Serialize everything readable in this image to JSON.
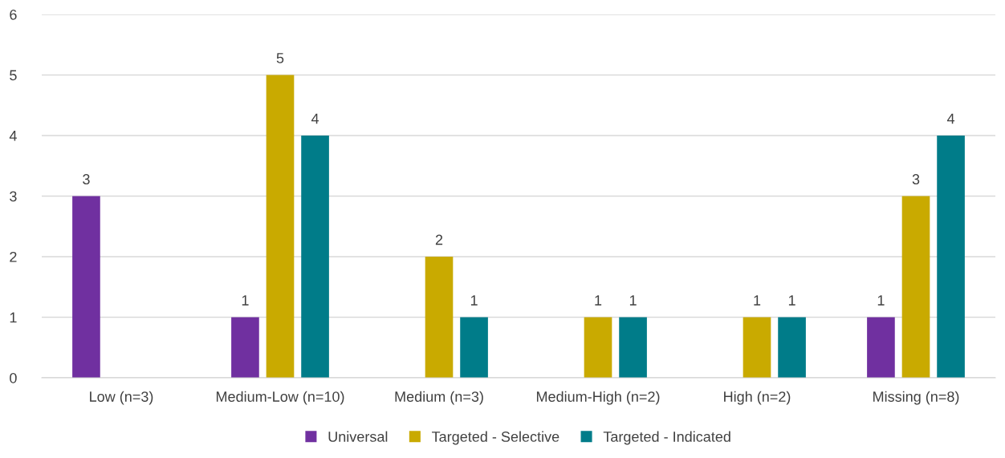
{
  "chart_data": {
    "type": "bar",
    "categories": [
      "Low (n=3)",
      "Medium-Low (n=10)",
      "Medium (n=3)",
      "Medium-High (n=2)",
      "High (n=2)",
      "Missing (n=8)"
    ],
    "series": [
      {
        "name": "Universal",
        "color": "#7030a0",
        "values": [
          3,
          1,
          null,
          null,
          null,
          1
        ]
      },
      {
        "name": "Targeted - Selective",
        "color": "#c9aa00",
        "values": [
          null,
          5,
          2,
          1,
          1,
          3
        ]
      },
      {
        "name": "Targeted - Indicated",
        "color": "#007c89",
        "values": [
          null,
          4,
          1,
          1,
          1,
          4
        ]
      }
    ],
    "ylim": [
      0,
      6
    ],
    "yticks": [
      0,
      1,
      2,
      3,
      4,
      5,
      6
    ],
    "grid": "y",
    "legend": "bottom",
    "data_labels": true
  }
}
